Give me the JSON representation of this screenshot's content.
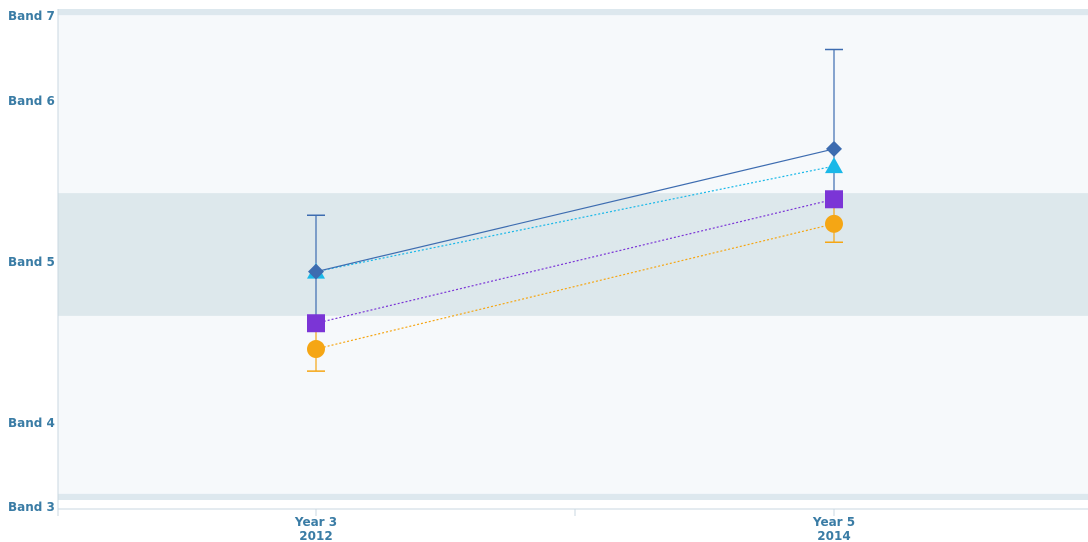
{
  "chart_data": {
    "type": "line",
    "y_ticks": [
      "Band 3",
      "Band 4",
      "Band 5",
      "Band 6",
      "Band 7"
    ],
    "ylim": [
      3,
      7
    ],
    "x": [
      {
        "line1": "Year 3",
        "line2": "2012"
      },
      {
        "line1": "Year 5",
        "line2": "2014"
      }
    ],
    "bands": [
      {
        "from": 3.0,
        "to": 3.05,
        "color": "#dde8ee"
      },
      {
        "from": 4.5,
        "to": 5.5,
        "color": "#dde8ec"
      },
      {
        "from": 6.95,
        "to": 7.0,
        "color": "#dde8ee"
      }
    ],
    "series": [
      {
        "color": "#3d6cb0",
        "marker": "diamond",
        "dash": "",
        "values": [
          4.86,
          5.86
        ],
        "error": [
          [
            4.45,
            5.32
          ],
          [
            5.44,
            6.67
          ]
        ]
      },
      {
        "color": "#1ab8e8",
        "marker": "triangle",
        "dash": "2,2",
        "values": [
          4.86,
          5.72
        ],
        "error": null
      },
      {
        "color": "#7b35d6",
        "marker": "square",
        "dash": "2,2",
        "values": [
          4.44,
          5.45
        ],
        "error": null
      },
      {
        "color": "#f5a614",
        "marker": "circle",
        "dash": "2,2",
        "values": [
          4.23,
          5.25
        ],
        "error": [
          [
            4.05,
            4.43
          ],
          [
            5.1,
            5.42
          ]
        ]
      }
    ],
    "grid": false
  }
}
